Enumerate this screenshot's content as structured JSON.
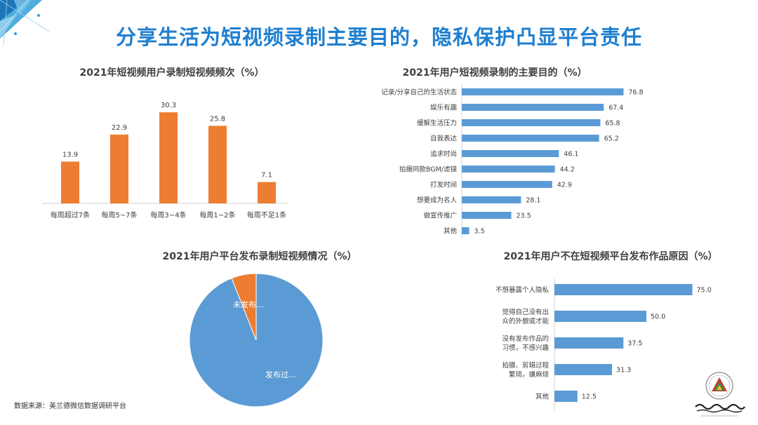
{
  "page": {
    "title": "分享生活为短视频录制主要目的，隐私保护凸显平台责任",
    "source": "数据来源：美兰德微信数据调研平台",
    "accent_color": "#1f7fcf"
  },
  "chart_data": [
    {
      "type": "bar",
      "title": "2021年短视频用户录制短视频频次（%）",
      "categories": [
        "每周超过7条",
        "每周5~7条",
        "每周3~4条",
        "每周1~2条",
        "每周不足1条"
      ],
      "values": [
        13.9,
        22.9,
        30.3,
        25.8,
        7.1
      ],
      "ylim": [
        0,
        35
      ],
      "grid": false,
      "color": "#ed7d31"
    },
    {
      "type": "bar",
      "orientation": "horizontal",
      "title": "2021年用户短视频录制的主要目的（%）",
      "categories": [
        "记录/分享自己的生活状态",
        "娱乐有趣",
        "缓解生活压力",
        "自我表达",
        "追求时尚",
        "拍摄同款BGM/滤镜",
        "打发时间",
        "想要成为名人",
        "做宣传推广",
        "其他"
      ],
      "values": [
        76.8,
        67.4,
        65.8,
        65.2,
        46.1,
        44.2,
        42.9,
        28.1,
        23.5,
        3.5
      ],
      "xlim": [
        0,
        100
      ],
      "grid": false,
      "color": "#5b9bd5"
    },
    {
      "type": "pie",
      "title": "2021年用户平台发布录制短视频情况（%）",
      "slice_labels": [
        "发布过…",
        "未发布…"
      ],
      "values": [
        94,
        6
      ],
      "colors": [
        "#5b9bd5",
        "#ed7d31"
      ]
    },
    {
      "type": "bar",
      "orientation": "horizontal",
      "title": "2021年用户不在短视频平台发布作品原因（%）",
      "categories": [
        [
          "不想暴露个人隐私"
        ],
        [
          "觉得自己没有出",
          "众的外貌或才能"
        ],
        [
          "没有发布作品的",
          "习惯，不感兴趣"
        ],
        [
          "拍摄、剪辑过程",
          "繁琐，嫌麻烦"
        ],
        [
          "其他"
        ]
      ],
      "values": [
        75.0,
        50.0,
        37.5,
        31.3,
        12.5
      ],
      "value_labels": [
        "75.0",
        "50.0",
        "37.5",
        "31.3",
        "12.5"
      ],
      "xlim": [
        0,
        100
      ],
      "grid": false,
      "color": "#5b9bd5"
    }
  ]
}
